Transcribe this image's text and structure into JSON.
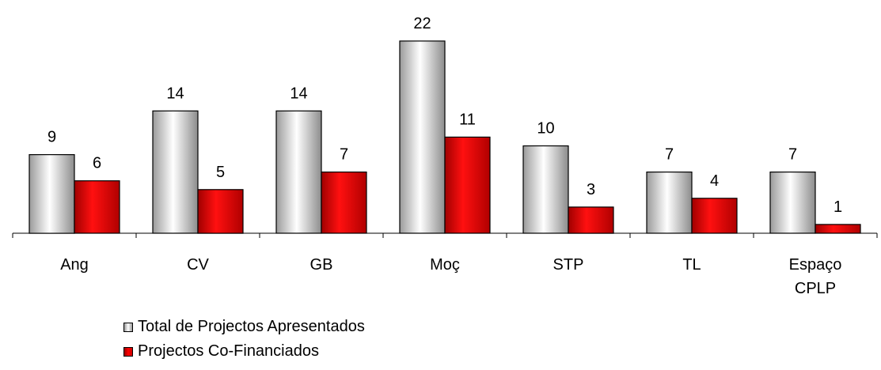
{
  "chart_data": {
    "type": "bar",
    "title": "",
    "xlabel": "",
    "ylabel": "",
    "ylim": [
      0,
      22
    ],
    "grid": false,
    "legend_position": "bottom",
    "categories": [
      [
        "Ang"
      ],
      [
        "CV"
      ],
      [
        "GB"
      ],
      [
        "Moç"
      ],
      [
        "STP"
      ],
      [
        "TL"
      ],
      [
        "Espaço",
        "CPLP"
      ]
    ],
    "series": [
      {
        "name": "Total de Projectos Apresentados",
        "values": [
          9,
          14,
          14,
          22,
          10,
          7,
          7
        ],
        "color": "#c0c0c0"
      },
      {
        "name": "Projectos Co-Financiados",
        "values": [
          6,
          5,
          7,
          11,
          3,
          4,
          1
        ],
        "color": "#e00000"
      }
    ]
  }
}
